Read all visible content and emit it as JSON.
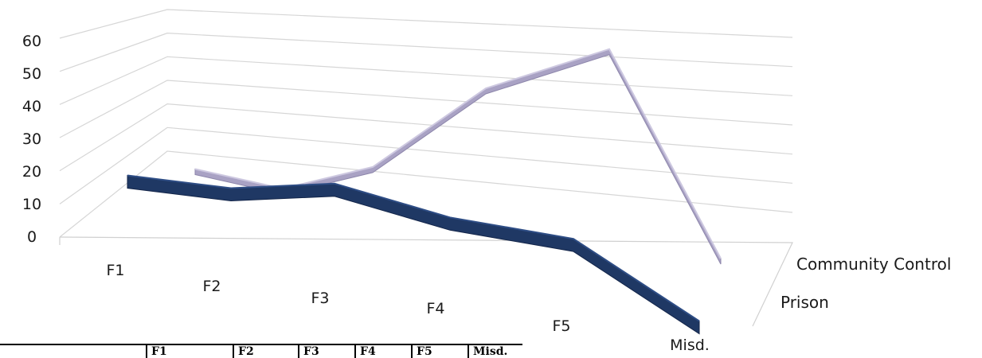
{
  "chart_data": {
    "type": "line",
    "style": "3d-ribbon",
    "categories": [
      "F1",
      "F2",
      "F3",
      "F4",
      "F5",
      "Misd."
    ],
    "ylim": [
      0,
      60
    ],
    "yticks": [
      "0",
      "10",
      "20",
      "30",
      "40",
      "50",
      "60"
    ],
    "grid": true,
    "series": [
      {
        "name": "Prison",
        "color": "#1f3864",
        "values": [
          11,
          10,
          15,
          6,
          3,
          -8
        ]
      },
      {
        "name": "Community Control",
        "color": "#a9a2c4",
        "values": [
          10,
          6,
          14,
          40,
          55,
          0
        ]
      }
    ],
    "depth_labels": [
      "Community Control",
      "Prison"
    ]
  },
  "table": {
    "headers": [
      "F1",
      "F2",
      "F3",
      "F4",
      "F5",
      "Misd."
    ]
  }
}
